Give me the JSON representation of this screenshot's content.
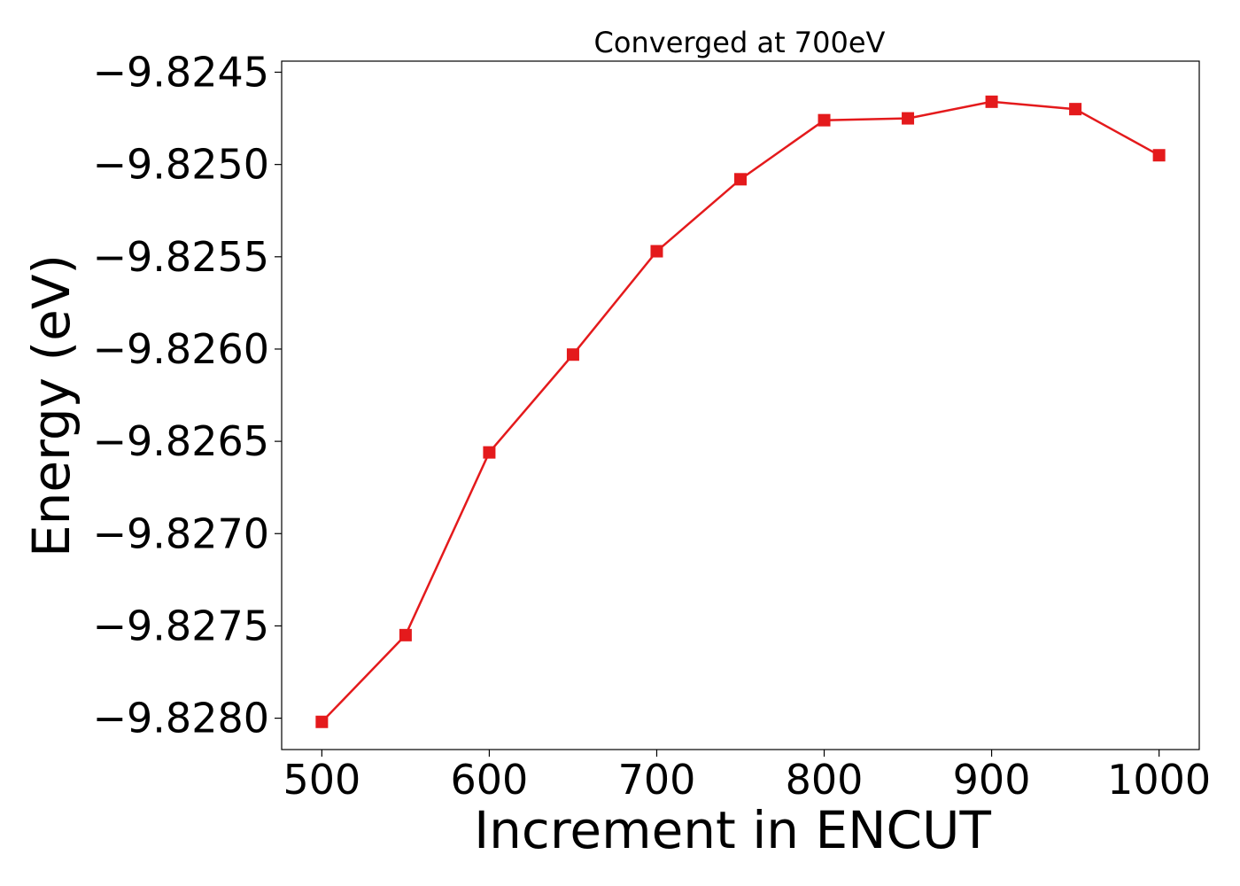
{
  "chart_data": {
    "type": "line",
    "title": "Converged at 700eV",
    "xlabel": "Increment in ENCUT",
    "ylabel": "Energy (eV)",
    "x": [
      500,
      550,
      600,
      650,
      700,
      750,
      800,
      850,
      900,
      950,
      1000
    ],
    "series": [
      {
        "values": [
          -9.82802,
          -9.82755,
          -9.82656,
          -9.82603,
          -9.82547,
          -9.82508,
          -9.82476,
          -9.82475,
          -9.82466,
          -9.8247,
          -9.82495
        ],
        "color": "#e41a1c",
        "marker": "square"
      }
    ],
    "xlim": [
      476,
      1024
    ],
    "ylim": [
      -9.82817,
      -9.82444
    ],
    "xticks": [
      500,
      600,
      700,
      800,
      900,
      1000
    ],
    "xtick_labels": [
      "500",
      "600",
      "700",
      "800",
      "900",
      "1000"
    ],
    "yticks": [
      -9.828,
      -9.8275,
      -9.827,
      -9.8265,
      -9.826,
      -9.8255,
      -9.825,
      -9.8245
    ],
    "ytick_labels": [
      "−9.8280",
      "−9.8275",
      "−9.8270",
      "−9.8265",
      "−9.8260",
      "−9.8255",
      "−9.8250",
      "−9.8245"
    ],
    "grid": false,
    "legend": "none"
  }
}
